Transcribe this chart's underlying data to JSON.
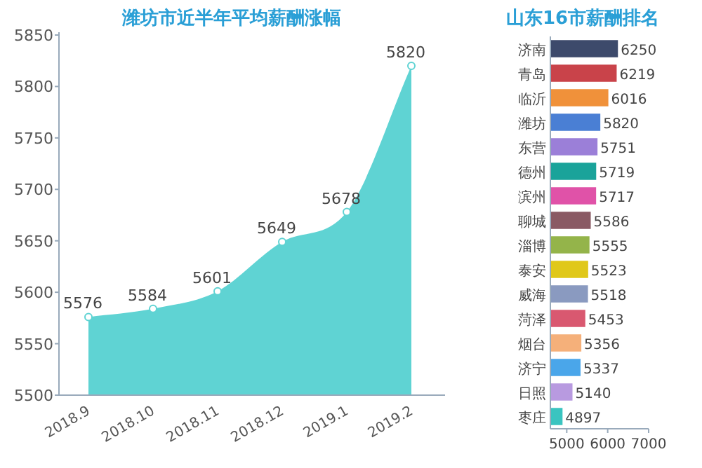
{
  "chart_data": [
    {
      "type": "area",
      "title": "潍坊市近半年平均薪酬涨幅",
      "categories": [
        "2018.9",
        "2018.10",
        "2018.11",
        "2018.12",
        "2019.1",
        "2019.2"
      ],
      "series": [
        {
          "color": "#5fd3d3",
          "values": [
            5576,
            5584,
            5601,
            5649,
            5678,
            5820
          ]
        }
      ],
      "ylim": [
        5500,
        5850
      ],
      "yticks": [
        5500,
        5550,
        5600,
        5650,
        5700,
        5750,
        5800,
        5850
      ],
      "marker": "circle",
      "data_labels": true
    },
    {
      "type": "bar",
      "orientation": "horizontal",
      "title": "山东16市薪酬排名",
      "categories": [
        "济南",
        "青岛",
        "临沂",
        "潍坊",
        "东营",
        "德州",
        "滨州",
        "聊城",
        "淄博",
        "泰安",
        "威海",
        "菏泽",
        "烟台",
        "济宁",
        "日照",
        "枣庄"
      ],
      "values": [
        6250,
        6219,
        6016,
        5820,
        5751,
        5719,
        5717,
        5586,
        5555,
        5523,
        5518,
        5453,
        5356,
        5337,
        5140,
        4897
      ],
      "colors": [
        "#3d4a6b",
        "#c9434a",
        "#f0913a",
        "#4a7fd4",
        "#9b7fd8",
        "#1aa39a",
        "#e052a8",
        "#8a5a64",
        "#94b44a",
        "#e0c81a",
        "#8a9ac0",
        "#d95870",
        "#f5b07a",
        "#4aa6ea",
        "#b89ae0",
        "#3ac4c0"
      ],
      "xlim": [
        4600,
        7000
      ],
      "xticks": [
        5000,
        6000,
        7000
      ],
      "data_labels": true
    }
  ]
}
